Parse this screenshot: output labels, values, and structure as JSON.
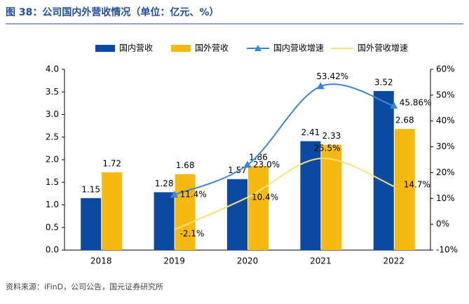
{
  "chart_data": {
    "type": "bar",
    "title": "图 38：公司国内外营收情况（单位：亿元、%）",
    "source": "资料来源：iFinD，公司公告，国元证券研究所",
    "categories": [
      "2018",
      "2019",
      "2020",
      "2021",
      "2022"
    ],
    "series": [
      {
        "name": "国内营收",
        "type": "bar",
        "color": "#0b4aa3",
        "values": [
          1.15,
          1.28,
          1.57,
          2.41,
          3.52
        ]
      },
      {
        "name": "国外营收",
        "type": "bar",
        "color": "#f6b90f",
        "values": [
          1.72,
          1.68,
          1.86,
          2.33,
          2.68
        ]
      },
      {
        "name": "国内营收增速",
        "type": "line",
        "axis": "y2",
        "color": "#3a86d4",
        "marker": "triangle",
        "values": [
          null,
          11.4,
          23.0,
          53.42,
          45.86
        ],
        "value_labels": [
          null,
          "11.4%",
          "23.0%",
          "53.42%",
          "45.86%"
        ]
      },
      {
        "name": "国外营收增速",
        "type": "line",
        "axis": "y2",
        "color": "#f8e27a",
        "values": [
          null,
          -2.1,
          10.4,
          25.5,
          14.7
        ],
        "value_labels": [
          null,
          "-2.1%",
          "10.4%",
          "25.5%",
          "14.7%"
        ]
      }
    ],
    "ylim": [
      0,
      4
    ],
    "yticks": [
      {
        "value": 0,
        "label": "0.0"
      },
      {
        "value": 0.5,
        "label": "0.5"
      },
      {
        "value": 1,
        "label": "1.0"
      },
      {
        "value": 1.5,
        "label": "1.5"
      },
      {
        "value": 2,
        "label": "2.0"
      },
      {
        "value": 2.5,
        "label": "2.5"
      },
      {
        "value": 3,
        "label": "3.0"
      },
      {
        "value": 3.5,
        "label": "3.5"
      },
      {
        "value": 4,
        "label": "4.0"
      }
    ],
    "y2lim": [
      -10,
      60
    ],
    "y2ticks": [
      {
        "value": -10,
        "label": "-10%"
      },
      {
        "value": 0,
        "label": "0%"
      },
      {
        "value": 10,
        "label": "10%"
      },
      {
        "value": 20,
        "label": "20%"
      },
      {
        "value": 30,
        "label": "30%"
      },
      {
        "value": 40,
        "label": "40%"
      },
      {
        "value": 50,
        "label": "50%"
      },
      {
        "value": 60,
        "label": "60%"
      }
    ]
  }
}
